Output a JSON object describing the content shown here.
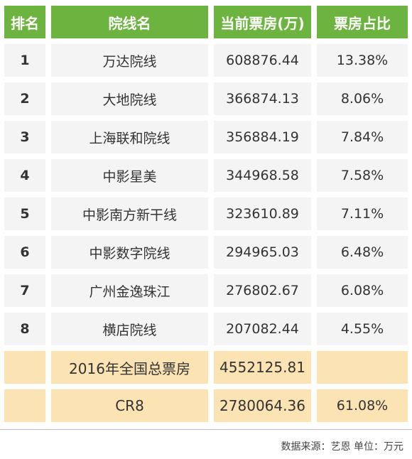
{
  "chart_data": {
    "type": "table",
    "columns": [
      "排名",
      "院线名",
      "当前票房(万)",
      "票房占比"
    ],
    "rows": [
      {
        "rank": "1",
        "name": "万达院线",
        "box_office": "608876.44",
        "share": "13.38%"
      },
      {
        "rank": "2",
        "name": "大地院线",
        "box_office": "366874.13",
        "share": "8.06%"
      },
      {
        "rank": "3",
        "name": "上海联和院线",
        "box_office": "356884.19",
        "share": "7.84%"
      },
      {
        "rank": "4",
        "name": "中影星美",
        "box_office": "344968.58",
        "share": "7.58%"
      },
      {
        "rank": "5",
        "name": "中影南方新干线",
        "box_office": "323610.89",
        "share": "7.11%"
      },
      {
        "rank": "6",
        "name": "中影数字院线",
        "box_office": "294965.03",
        "share": "6.48%"
      },
      {
        "rank": "7",
        "name": "广州金逸珠江",
        "box_office": "276802.67",
        "share": "6.08%"
      },
      {
        "rank": "8",
        "name": "横店院线",
        "box_office": "207082.44",
        "share": "4.55%"
      }
    ],
    "summary": [
      {
        "rank": "",
        "name": "2016年全国总票房",
        "box_office": "4552125.81",
        "share": ""
      },
      {
        "rank": "",
        "name": "CR8",
        "box_office": "2780064.36",
        "share": "61.08%"
      }
    ]
  },
  "footer": {
    "source": "数据来源：艺恩 单位：万元"
  },
  "colors": {
    "header_bg": "#6db33f",
    "row_bg": "#f4f4f4",
    "summary_bg": "#fbe3b4"
  }
}
